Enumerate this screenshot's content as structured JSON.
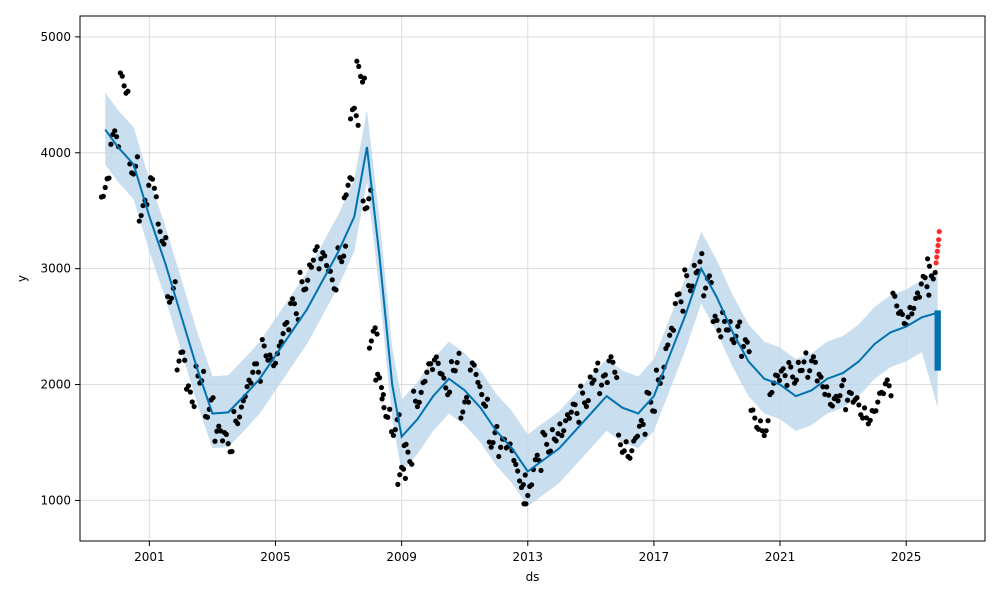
{
  "chart_data": {
    "type": "scatter",
    "title": "",
    "xlabel": "ds",
    "ylabel": "y",
    "x_tick_labels": [
      "2001",
      "2005",
      "2009",
      "2013",
      "2017",
      "2021",
      "2025"
    ],
    "x_tick_values": [
      2001,
      2005,
      2009,
      2013,
      2017,
      2021,
      2025
    ],
    "y_tick_labels": [
      "1000",
      "2000",
      "3000",
      "4000",
      "5000"
    ],
    "y_tick_values": [
      1000,
      2000,
      3000,
      4000,
      5000
    ],
    "xlim": [
      1998.8,
      2027.5
    ],
    "ylim": [
      650,
      5180
    ],
    "grid": true,
    "colors": {
      "observed": "#000000",
      "forecast_line": "#0072B2",
      "uncertainty_band": "#BBD6EA",
      "highlight_points": "#FF2A2A",
      "grid": "#DDDDDD"
    },
    "forecast": {
      "x": [
        1999.6,
        2000.0,
        2000.5,
        2001.0,
        2001.5,
        2002.0,
        2002.5,
        2003.0,
        2003.5,
        2004.0,
        2004.5,
        2005.0,
        2005.5,
        2006.0,
        2006.5,
        2007.0,
        2007.5,
        2007.9,
        2008.3,
        2008.7,
        2009.0,
        2009.5,
        2010.0,
        2010.5,
        2011.0,
        2011.5,
        2012.0,
        2012.5,
        2013.0,
        2013.5,
        2014.0,
        2014.5,
        2015.0,
        2015.5,
        2016.0,
        2016.5,
        2017.0,
        2017.5,
        2018.0,
        2018.5,
        2019.0,
        2019.5,
        2020.0,
        2020.5,
        2021.0,
        2021.5,
        2022.0,
        2022.5,
        2023.0,
        2023.5,
        2024.0,
        2024.5,
        2025.0,
        2025.5,
        2026.0
      ],
      "y": [
        4200,
        4050,
        3900,
        3450,
        3050,
        2600,
        2150,
        1750,
        1760,
        1900,
        2050,
        2250,
        2450,
        2650,
        2900,
        3150,
        3450,
        4050,
        3100,
        2000,
        1550,
        1700,
        1900,
        2050,
        1950,
        1800,
        1600,
        1450,
        1250,
        1350,
        1450,
        1600,
        1750,
        1900,
        1800,
        1750,
        1900,
        2250,
        2600,
        3000,
        2750,
        2450,
        2200,
        2050,
        2000,
        1900,
        1950,
        2050,
        2100,
        2200,
        2350,
        2450,
        2500,
        2580,
        2620
      ],
      "lower": [
        3900,
        3750,
        3600,
        3150,
        2750,
        2300,
        1850,
        1450,
        1460,
        1600,
        1750,
        1950,
        2150,
        2350,
        2600,
        2850,
        3150,
        3750,
        2800,
        1700,
        1250,
        1400,
        1600,
        1750,
        1650,
        1500,
        1300,
        1150,
        950,
        1050,
        1150,
        1300,
        1450,
        1600,
        1500,
        1450,
        1600,
        1950,
        2300,
        2700,
        2450,
        2150,
        1900,
        1750,
        1700,
        1600,
        1650,
        1750,
        1800,
        1900,
        2050,
        2150,
        2200,
        2280,
        1800
      ],
      "upper": [
        4520,
        4370,
        4220,
        3770,
        3370,
        2920,
        2470,
        2070,
        2080,
        2220,
        2370,
        2570,
        2770,
        2970,
        3220,
        3470,
        3770,
        4370,
        3420,
        2320,
        1870,
        2020,
        2220,
        2370,
        2270,
        2120,
        1920,
        1770,
        1570,
        1670,
        1770,
        1920,
        2070,
        2220,
        2120,
        2070,
        2220,
        2570,
        2920,
        3320,
        3070,
        2770,
        2520,
        2370,
        2320,
        2220,
        2270,
        2370,
        2420,
        2520,
        2670,
        2770,
        2820,
        2900,
        3000
      ]
    },
    "observed": {
      "x": [
        1999.6,
        1999.9,
        2000.2,
        2000.5,
        2000.8,
        2001.1,
        2001.4,
        2001.7,
        2002.0,
        2002.3,
        2002.6,
        2002.9,
        2003.2,
        2003.5,
        2003.8,
        2004.1,
        2004.4,
        2004.7,
        2005.0,
        2005.3,
        2005.6,
        2005.9,
        2006.2,
        2006.5,
        2006.8,
        2007.1,
        2007.3,
        2007.5,
        2007.7,
        2007.9,
        2008.1,
        2008.3,
        2008.5,
        2008.8,
        2009.0,
        2009.2,
        2009.5,
        2009.8,
        2010.1,
        2010.4,
        2010.7,
        2011.0,
        2011.3,
        2011.6,
        2011.9,
        2012.2,
        2012.5,
        2012.8,
        2013.0,
        2013.3,
        2013.6,
        2013.9,
        2014.2,
        2014.5,
        2014.8,
        2015.1,
        2015.4,
        2015.7,
        2016.0,
        2016.3,
        2016.6,
        2016.9,
        2017.2,
        2017.5,
        2017.8,
        2018.1,
        2018.4,
        2018.7,
        2019.0,
        2019.3,
        2019.6,
        2019.9,
        2020.2,
        2020.5,
        2020.8,
        2021.1,
        2021.4,
        2021.7,
        2022.0,
        2022.3,
        2022.6,
        2022.9,
        2023.2,
        2023.5,
        2023.8,
        2024.1,
        2024.4,
        2024.7,
        2025.0,
        2025.3,
        2025.6,
        2025.8
      ],
      "y": [
        3700,
        4100,
        4600,
        3900,
        3500,
        3700,
        3300,
        2800,
        2200,
        1900,
        2100,
        1800,
        1550,
        1500,
        1750,
        1950,
        2100,
        2300,
        2250,
        2450,
        2650,
        2900,
        3100,
        3050,
        2900,
        3150,
        3700,
        4300,
        4700,
        3600,
        2400,
        2000,
        1800,
        1650,
        1200,
        1400,
        1900,
        2100,
        2150,
        2000,
        2200,
        1800,
        2100,
        1900,
        1550,
        1450,
        1400,
        1200,
        1050,
        1300,
        1500,
        1600,
        1650,
        1750,
        1900,
        2100,
        2000,
        2150,
        1500,
        1450,
        1600,
        1850,
        2100,
        2400,
        2700,
        2900,
        3050,
        2850,
        2500,
        2550,
        2450,
        2300,
        1700,
        1650,
        2000,
        2050,
        2100,
        2200,
        2150,
        2000,
        1900,
        1950,
        1850,
        1800,
        1750,
        1850,
        1950,
        2700,
        2600,
        2700,
        2850,
        3000
      ]
    },
    "highlight_points": {
      "x": [
        2025.95,
        2025.97,
        2025.99,
        2026.01,
        2026.03,
        2026.05
      ],
      "y": [
        3050,
        3100,
        3150,
        3200,
        3250,
        3320
      ]
    },
    "future_forecast_span": {
      "x": [
        2025.9,
        2026.1
      ],
      "y_min": 2120,
      "y_max": 2640
    }
  }
}
